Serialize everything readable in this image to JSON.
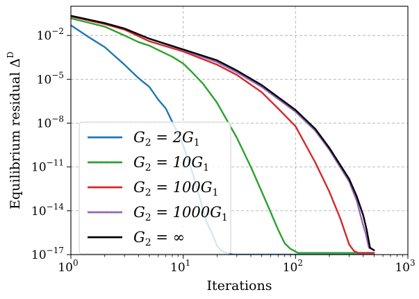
{
  "chart_data": {
    "type": "line",
    "xlabel": "Iterations",
    "ylabel": "Equilibrium residual Δ",
    "ylabel_superscript": "D",
    "xscale": "log",
    "yscale": "log",
    "xlim": [
      1,
      1000
    ],
    "ylim": [
      1e-17,
      1
    ],
    "grid": true,
    "legend_position": "lower-left",
    "x_ticks": [
      {
        "base": "10",
        "exp": "0",
        "value": 1
      },
      {
        "base": "10",
        "exp": "1",
        "value": 10
      },
      {
        "base": "10",
        "exp": "2",
        "value": 100
      },
      {
        "base": "10",
        "exp": "3",
        "value": 1000
      }
    ],
    "y_ticks": [
      {
        "base": "10",
        "exp": "−17",
        "value": 1e-17
      },
      {
        "base": "10",
        "exp": "−14",
        "value": 1e-14
      },
      {
        "base": "10",
        "exp": "−11",
        "value": 1e-11
      },
      {
        "base": "10",
        "exp": "−8",
        "value": 1e-08
      },
      {
        "base": "10",
        "exp": "−5",
        "value": 1e-05
      },
      {
        "base": "10",
        "exp": "−2",
        "value": 0.01
      }
    ],
    "series": [
      {
        "name": "G2 = 2G1",
        "legend_parts": [
          "G",
          "2",
          " = 2G",
          "1"
        ],
        "color": "#1f77b4",
        "x": [
          1,
          1.5,
          2,
          3,
          4,
          5,
          6,
          7,
          8,
          10,
          12,
          14,
          16,
          18,
          20,
          22,
          25,
          28,
          40,
          100,
          200,
          500
        ],
        "y": [
          0.05,
          0.0063,
          0.0016,
          0.0001,
          1.2e-05,
          3e-06,
          4e-07,
          1e-07,
          1.2e-08,
          3e-10,
          5e-12,
          8e-14,
          2e-15,
          3e-16,
          4e-17,
          1.8e-17,
          1.2e-17,
          1e-17,
          1e-17,
          1e-17,
          1e-17,
          1e-17
        ]
      },
      {
        "name": "G2 = 10G1",
        "legend_parts": [
          "G",
          "2",
          " = 10G",
          "1"
        ],
        "color": "#2ca02c",
        "x": [
          1,
          2,
          3,
          4,
          5,
          6,
          8,
          10,
          12,
          15,
          20,
          30,
          40,
          50,
          60,
          70,
          80,
          90,
          100,
          105,
          110,
          120,
          200,
          500
        ],
        "y": [
          0.15,
          0.04,
          0.01,
          0.0035,
          0.002,
          0.001,
          0.00035,
          0.00012,
          3e-05,
          5e-06,
          2.5e-07,
          1e-09,
          1e-11,
          2e-13,
          8e-15,
          5e-16,
          6e-17,
          2.5e-17,
          1.6e-17,
          1.3e-17,
          1.3e-17,
          1.3e-17,
          1.3e-17,
          1.3e-17
        ]
      },
      {
        "name": "G2 = 100G1",
        "legend_parts": [
          "G",
          "2",
          " = 100G",
          "1"
        ],
        "color": "#d62728",
        "x": [
          1,
          2,
          3,
          5,
          10,
          20,
          30,
          50,
          70,
          100,
          150,
          200,
          250,
          300,
          330,
          360,
          500
        ],
        "y": [
          0.2,
          0.06,
          0.025,
          0.004,
          0.0008,
          0.0001,
          2e-05,
          1.3e-06,
          1e-07,
          6e-09,
          2e-11,
          2e-13,
          3e-15,
          5e-17,
          1.8e-17,
          1.3e-17,
          1.3e-17
        ]
      },
      {
        "name": "G2 = 1000G1",
        "legend_parts": [
          "G",
          "2",
          " = 1000G",
          "1"
        ],
        "color": "#9467bd",
        "x": [
          1,
          2,
          3,
          5,
          10,
          20,
          30,
          50,
          100,
          150,
          200,
          300,
          350,
          400,
          420,
          450,
          500
        ],
        "y": [
          0.22,
          0.07,
          0.03,
          0.006,
          0.001,
          0.00015,
          3e-05,
          3e-06,
          6e-08,
          3e-09,
          1.5e-10,
          1e-12,
          5e-14,
          1e-15,
          3e-16,
          3e-17,
          2e-17
        ]
      },
      {
        "name": "G2 = ∞",
        "legend_parts": [
          "G",
          "2",
          " = ∞",
          ""
        ],
        "color": "#000000",
        "x": [
          1,
          2,
          3,
          5,
          10,
          20,
          30,
          50,
          100,
          150,
          200,
          300,
          350,
          400,
          430,
          460,
          500
        ],
        "y": [
          0.22,
          0.07,
          0.03,
          0.006,
          0.0011,
          0.0002,
          4e-05,
          4e-06,
          8e-08,
          4e-09,
          2e-10,
          1.5e-12,
          1e-13,
          5e-15,
          5e-16,
          3e-17,
          2e-17
        ]
      }
    ]
  }
}
